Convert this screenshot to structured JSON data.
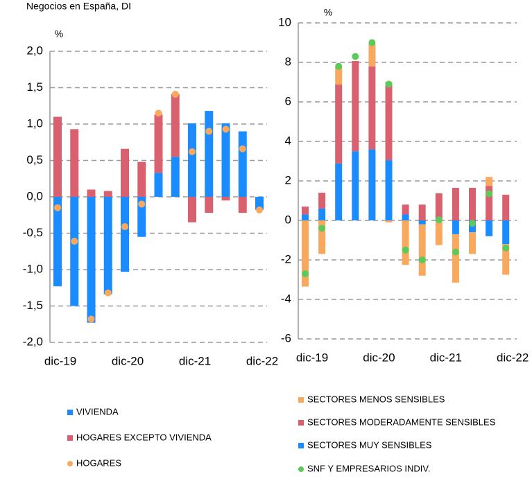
{
  "chart_data": [
    {
      "type": "bar",
      "title": "Negocios en España, DI",
      "y_label": "%",
      "categories": [
        "dic-19",
        null,
        null,
        null,
        "dic-20",
        null,
        null,
        null,
        "dic-21",
        null,
        null,
        null,
        "dic-22"
      ],
      "ylim": [
        -2.0,
        2.0
      ],
      "yticks": [
        {
          "value": 2.0,
          "label": "2,0"
        },
        {
          "value": 1.5,
          "label": "1,5"
        },
        {
          "value": 1.0,
          "label": "1,0"
        },
        {
          "value": 0.5,
          "label": "0,5"
        },
        {
          "value": 0.0,
          "label": "0,0"
        },
        {
          "value": -0.5,
          "label": "-0,5"
        },
        {
          "value": -1.0,
          "label": "-1,0"
        },
        {
          "value": -1.5,
          "label": "-1,5"
        },
        {
          "value": -2.0,
          "label": "-2,0"
        }
      ],
      "grid": true,
      "series": [
        {
          "name": "VIVIENDA",
          "color": "#1a8cff",
          "style": "bar",
          "values": [
            -1.23,
            -1.5,
            -1.73,
            -1.34,
            -1.03,
            -0.55,
            0.33,
            0.55,
            1.01,
            1.18,
            1.01,
            0.9,
            -0.17
          ]
        },
        {
          "name": "HOGARES EXCEPTO VIVIENDA",
          "color": "#d9606e",
          "style": "bar",
          "values": [
            1.1,
            0.93,
            0.1,
            0.08,
            0.66,
            0.48,
            0.8,
            0.86,
            -0.35,
            -0.22,
            -0.05,
            -0.22,
            -0.01
          ]
        },
        {
          "name": "HOGARES",
          "color": "#f8a95e",
          "style": "dot",
          "values": [
            -0.15,
            -0.61,
            -1.68,
            -1.32,
            -0.41,
            -0.1,
            1.15,
            1.41,
            0.62,
            0.9,
            0.93,
            0.66,
            -0.18
          ]
        }
      ]
    },
    {
      "type": "bar",
      "y_label": "%",
      "categories": [
        "dic-19",
        null,
        null,
        null,
        "dic-20",
        null,
        null,
        null,
        "dic-21",
        null,
        null,
        null,
        "dic-22"
      ],
      "ylim": [
        -6,
        10
      ],
      "yticks": [
        10,
        8,
        6,
        4,
        2,
        0,
        -2,
        -4,
        -6
      ],
      "grid": true,
      "series": [
        {
          "name": "SECTORES MUY SENSIBLES",
          "color": "#1a8cff",
          "style": "bar",
          "values": [
            0.3,
            0.6,
            2.88,
            3.5,
            3.6,
            3.05,
            0.3,
            -0.2,
            0.02,
            -0.7,
            -0.6,
            -0.8,
            -1.2
          ]
        },
        {
          "name": "SECTORES MODERADAMENTE SENSIBLES",
          "color": "#d9606e",
          "style": "bar",
          "values": [
            0.4,
            0.8,
            4.0,
            4.57,
            4.2,
            3.95,
            0.5,
            0.8,
            1.35,
            1.65,
            1.65,
            1.75,
            1.3
          ]
        },
        {
          "name": "SECTORES MENOS SENSIBLES",
          "color": "#f8a95e",
          "style": "bar",
          "values": [
            -3.35,
            -1.7,
            0.92,
            0.0,
            1.15,
            -0.1,
            -2.25,
            -2.6,
            -1.25,
            -2.45,
            -1.1,
            0.45,
            -1.55
          ]
        },
        {
          "name": "SNF Y EMPRESARIOS INDIV.",
          "color": "#5ec95b",
          "style": "dot",
          "values": [
            -2.7,
            -0.4,
            7.8,
            8.3,
            9.0,
            6.9,
            -1.5,
            -2.0,
            0.03,
            -1.6,
            -0.15,
            1.35,
            -1.4
          ]
        }
      ]
    }
  ]
}
